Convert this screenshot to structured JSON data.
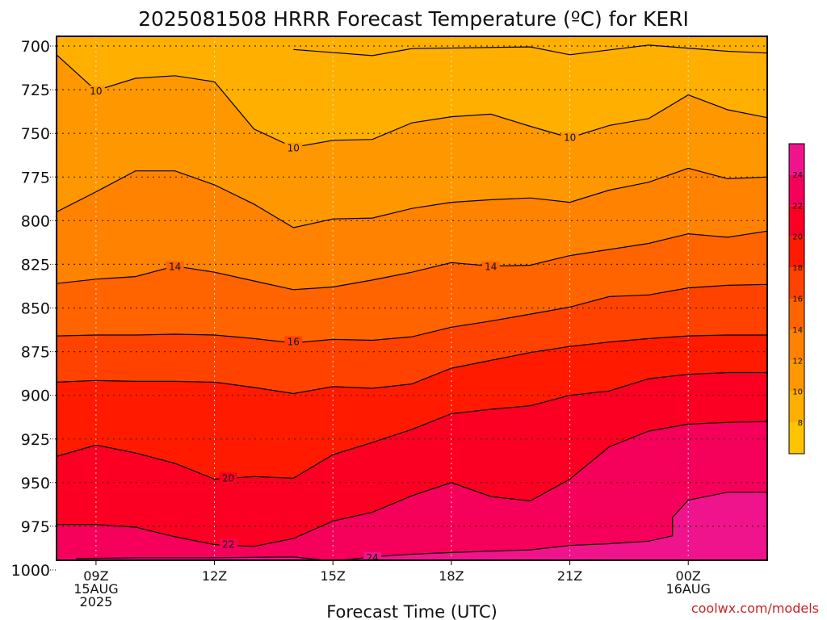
{
  "chart_data": {
    "type": "heatmap",
    "title": "2025081508 HRRR Forecast Temperature (ºC) for KERI",
    "xlabel": "Forecast Time (UTC)",
    "ylabel": "",
    "y_ticks": [
      "700",
      "725",
      "750",
      "775",
      "800",
      "825",
      "850",
      "875",
      "900",
      "925",
      "950",
      "975",
      "1000"
    ],
    "ylim": [
      1000,
      700
    ],
    "x_ticks": [
      {
        "lines": [
          "09Z",
          "15AUG",
          "2025"
        ],
        "hour": 9
      },
      {
        "lines": [
          "12Z"
        ],
        "hour": 12
      },
      {
        "lines": [
          "15Z"
        ],
        "hour": 15
      },
      {
        "lines": [
          "18Z"
        ],
        "hour": 18
      },
      {
        "lines": [
          "21Z"
        ],
        "hour": 21
      },
      {
        "lines": [
          "00Z",
          "16AUG"
        ],
        "hour": 24
      }
    ],
    "xlim_hours": [
      8,
      26
    ],
    "grid": true,
    "colorbar": {
      "ticks": [
        "8",
        "10",
        "12",
        "14",
        "16",
        "18",
        "20",
        "22",
        "24"
      ],
      "bins": [
        {
          "from": 6,
          "to": 8,
          "color": "#ffc400"
        },
        {
          "from": 8,
          "to": 10,
          "color": "#ffaf00"
        },
        {
          "from": 10,
          "to": 12,
          "color": "#ff9800"
        },
        {
          "from": 12,
          "to": 14,
          "color": "#ff8200"
        },
        {
          "from": 14,
          "to": 16,
          "color": "#ff6400"
        },
        {
          "from": 16,
          "to": 18,
          "color": "#ff4200"
        },
        {
          "from": 18,
          "to": 20,
          "color": "#ff1a00"
        },
        {
          "from": 20,
          "to": 22,
          "color": "#fb0022"
        },
        {
          "from": 22,
          "to": 24,
          "color": "#f5005a"
        },
        {
          "from": 24,
          "to": 26,
          "color": "#f0148c"
        }
      ]
    },
    "contours": [
      {
        "level": 8,
        "points": [
          [
            14.0,
            702.0
          ],
          [
            16.0,
            705.5
          ],
          [
            17.0,
            701.5
          ],
          [
            20.0,
            700.5
          ],
          [
            21.0,
            705.0
          ],
          [
            23.0,
            699.5
          ],
          [
            25.0,
            703.0
          ],
          [
            26.0,
            704.0
          ]
        ]
      },
      {
        "level": 10,
        "points": [
          [
            8.0,
            705.0
          ],
          [
            9.0,
            725.5
          ],
          [
            10.0,
            718.5
          ],
          [
            11.0,
            717.0
          ],
          [
            12.0,
            720.5
          ],
          [
            13.0,
            747.5
          ],
          [
            14.0,
            758.0
          ],
          [
            15.0,
            754.0
          ],
          [
            16.0,
            753.5
          ],
          [
            17.0,
            744.0
          ],
          [
            18.0,
            740.5
          ],
          [
            19.0,
            739.0
          ],
          [
            20.0,
            746.0
          ],
          [
            21.0,
            752.5
          ],
          [
            22.0,
            745.5
          ],
          [
            23.0,
            741.5
          ],
          [
            24.0,
            728.0
          ],
          [
            25.0,
            736.5
          ],
          [
            26.0,
            741.0
          ]
        ]
      },
      {
        "level": 12,
        "points": [
          [
            8.0,
            795.0
          ],
          [
            9.0,
            783.5
          ],
          [
            10.0,
            771.5
          ],
          [
            11.0,
            771.5
          ],
          [
            12.0,
            779.5
          ],
          [
            13.0,
            790.5
          ],
          [
            14.0,
            804.0
          ],
          [
            15.0,
            799.0
          ],
          [
            16.0,
            798.5
          ],
          [
            17.0,
            793.0
          ],
          [
            18.0,
            789.5
          ],
          [
            19.0,
            788.0
          ],
          [
            20.0,
            787.0
          ],
          [
            21.0,
            789.5
          ],
          [
            22.0,
            782.5
          ],
          [
            23.0,
            778.0
          ],
          [
            24.0,
            770.0
          ],
          [
            25.0,
            776.0
          ],
          [
            26.0,
            775.0
          ]
        ]
      },
      {
        "level": 14,
        "points": [
          [
            8.0,
            836.0
          ],
          [
            9.0,
            833.5
          ],
          [
            10.0,
            832.0
          ],
          [
            11.0,
            826.0
          ],
          [
            12.0,
            829.5
          ],
          [
            13.0,
            834.5
          ],
          [
            14.0,
            839.5
          ],
          [
            15.0,
            838.0
          ],
          [
            16.0,
            834.0
          ],
          [
            17.0,
            829.5
          ],
          [
            18.0,
            824.0
          ],
          [
            19.0,
            826.0
          ],
          [
            20.0,
            825.5
          ],
          [
            21.0,
            820.0
          ],
          [
            22.0,
            816.5
          ],
          [
            23.0,
            813.0
          ],
          [
            24.0,
            807.5
          ],
          [
            25.0,
            809.5
          ],
          [
            26.0,
            806.0
          ]
        ]
      },
      {
        "level": 16,
        "points": [
          [
            8.0,
            866.0
          ],
          [
            9.0,
            865.5
          ],
          [
            10.0,
            865.5
          ],
          [
            11.0,
            865.0
          ],
          [
            12.0,
            865.5
          ],
          [
            13.0,
            867.5
          ],
          [
            14.0,
            870.0
          ],
          [
            15.0,
            868.0
          ],
          [
            16.0,
            868.5
          ],
          [
            17.0,
            866.5
          ],
          [
            18.0,
            861.0
          ],
          [
            19.0,
            857.5
          ],
          [
            20.0,
            853.5
          ],
          [
            21.0,
            849.5
          ],
          [
            22.0,
            843.5
          ],
          [
            23.0,
            842.5
          ],
          [
            24.0,
            838.5
          ],
          [
            25.0,
            837.0
          ],
          [
            26.0,
            836.5
          ]
        ]
      },
      {
        "level": 18,
        "points": [
          [
            8.0,
            892.5
          ],
          [
            9.0,
            891.5
          ],
          [
            10.0,
            892.0
          ],
          [
            11.0,
            892.0
          ],
          [
            12.0,
            892.5
          ],
          [
            13.0,
            895.5
          ],
          [
            14.0,
            899.0
          ],
          [
            15.0,
            895.0
          ],
          [
            16.0,
            896.0
          ],
          [
            17.0,
            893.5
          ],
          [
            18.0,
            884.5
          ],
          [
            19.0,
            880.0
          ],
          [
            20.0,
            875.5
          ],
          [
            21.0,
            872.0
          ],
          [
            22.0,
            869.5
          ],
          [
            23.0,
            867.5
          ],
          [
            24.0,
            866.0
          ],
          [
            25.0,
            865.5
          ],
          [
            26.0,
            865.5
          ]
        ]
      },
      {
        "level": 20,
        "points": [
          [
            8.0,
            935.0
          ],
          [
            9.0,
            928.5
          ],
          [
            10.0,
            933.0
          ],
          [
            11.0,
            939.0
          ],
          [
            12.0,
            948.0
          ],
          [
            13.0,
            946.5
          ],
          [
            14.0,
            947.5
          ],
          [
            15.0,
            934.0
          ],
          [
            16.0,
            927.0
          ],
          [
            17.0,
            919.5
          ],
          [
            18.0,
            910.5
          ],
          [
            19.0,
            908.0
          ],
          [
            20.0,
            906.0
          ],
          [
            21.0,
            900.0
          ],
          [
            22.0,
            897.5
          ],
          [
            23.0,
            890.5
          ],
          [
            24.0,
            888.0
          ],
          [
            25.0,
            887.0
          ],
          [
            26.0,
            887.0
          ]
        ]
      },
      {
        "level": 22,
        "points": [
          [
            8.0,
            974.0
          ],
          [
            9.0,
            974.0
          ],
          [
            10.0,
            975.5
          ],
          [
            11.0,
            981.0
          ],
          [
            12.0,
            985.5
          ],
          [
            13.0,
            986.5
          ],
          [
            14.0,
            982.0
          ],
          [
            15.0,
            972.0
          ],
          [
            16.0,
            967.0
          ],
          [
            17.0,
            957.5
          ],
          [
            18.0,
            950.0
          ],
          [
            19.0,
            958.0
          ],
          [
            20.0,
            960.5
          ],
          [
            21.0,
            948.0
          ],
          [
            22.0,
            929.5
          ],
          [
            23.0,
            920.5
          ],
          [
            24.0,
            916.5
          ],
          [
            25.0,
            915.5
          ],
          [
            26.0,
            915.0
          ]
        ]
      },
      {
        "level": 24,
        "points": [
          [
            8.5,
            993.5
          ],
          [
            10.0,
            993.0
          ],
          [
            12.0,
            993.0
          ],
          [
            14.0,
            992.5
          ],
          [
            15.0,
            995.0
          ],
          [
            16.0,
            992.5
          ],
          [
            17.0,
            991.0
          ],
          [
            18.0,
            990.0
          ],
          [
            20.0,
            988.5
          ],
          [
            21.0,
            986.0
          ],
          [
            22.0,
            985.0
          ],
          [
            23.0,
            983.5
          ],
          [
            23.6,
            980.5
          ],
          [
            23.6,
            970.0
          ],
          [
            24.0,
            960.0
          ],
          [
            25.0,
            955.5
          ],
          [
            26.0,
            955.5
          ]
        ]
      }
    ],
    "contour_labels": [
      {
        "level": 10,
        "text": "10",
        "hour": 9.0,
        "p": 726.0
      },
      {
        "level": 10,
        "text": "10",
        "hour": 14.0,
        "p": 758.5
      },
      {
        "level": 10,
        "text": "10",
        "hour": 21.0,
        "p": 752.5
      },
      {
        "level": 14,
        "text": "14",
        "hour": 11.0,
        "p": 826.5
      },
      {
        "level": 14,
        "text": "14",
        "hour": 19.0,
        "p": 826.5
      },
      {
        "level": 16,
        "text": "16",
        "hour": 14.0,
        "p": 869.5
      },
      {
        "level": 20,
        "text": "20",
        "hour": 12.35,
        "p": 947.5
      },
      {
        "level": 22,
        "text": "22",
        "hour": 12.35,
        "p": 985.5
      },
      {
        "level": 24,
        "text": "24",
        "hour": 16.0,
        "p": 993.0
      }
    ],
    "ground_from_p": 994
  },
  "credit": "coolwx.com/models"
}
